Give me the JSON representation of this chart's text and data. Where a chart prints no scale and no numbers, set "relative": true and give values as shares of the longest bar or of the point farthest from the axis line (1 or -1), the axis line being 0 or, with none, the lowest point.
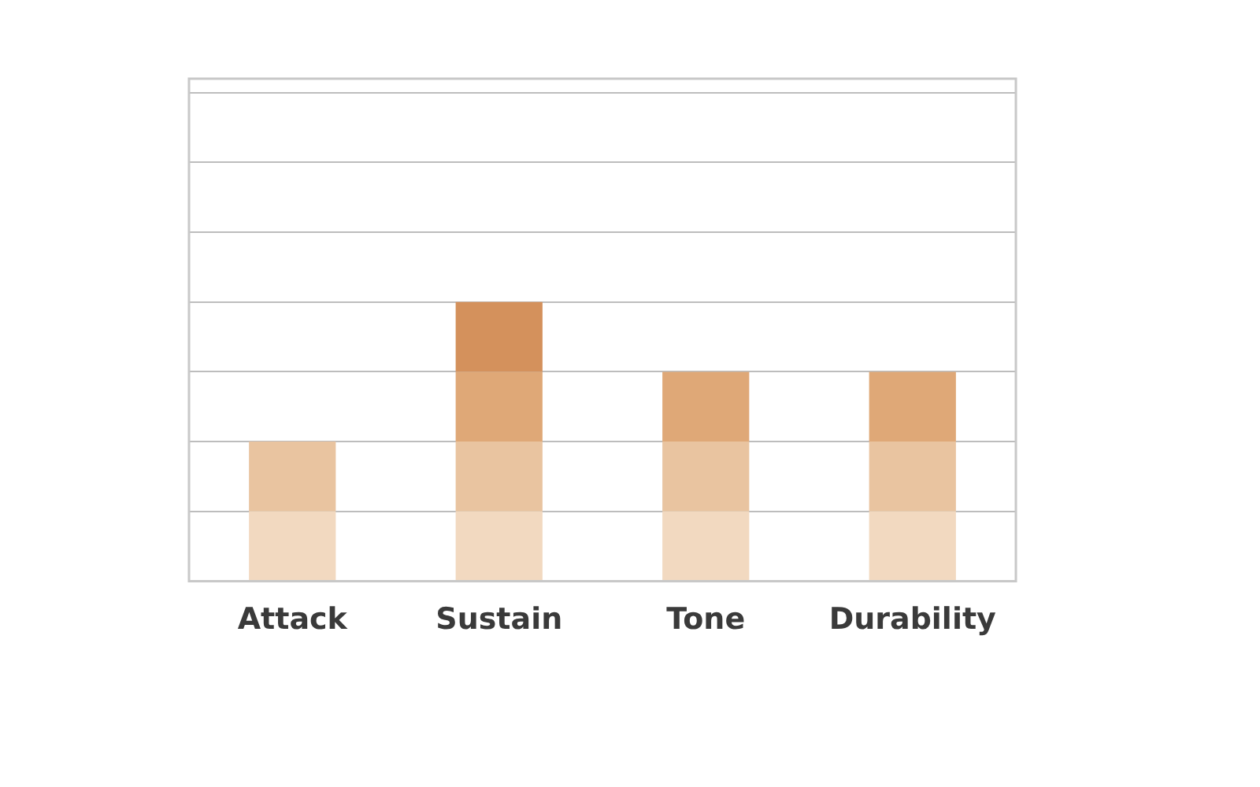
{
  "chart_data": {
    "type": "bar",
    "stacked": true,
    "relative": true,
    "grid": "y",
    "legend": false,
    "categories": [
      "Attack",
      "Sustain",
      "Tone",
      "Durability"
    ],
    "series": [
      {
        "color": "#f2d9c0",
        "values": [
          0.25,
          0.25,
          0.25,
          0.25
        ]
      },
      {
        "color": "#e9c4a0",
        "values": [
          0.25,
          0.25,
          0.25,
          0.25
        ]
      },
      {
        "color": "#dfa877",
        "values": [
          null,
          0.25,
          0.25,
          0.25
        ]
      },
      {
        "color": "#d4915c",
        "values": [
          null,
          0.25,
          null,
          null
        ]
      }
    ]
  }
}
